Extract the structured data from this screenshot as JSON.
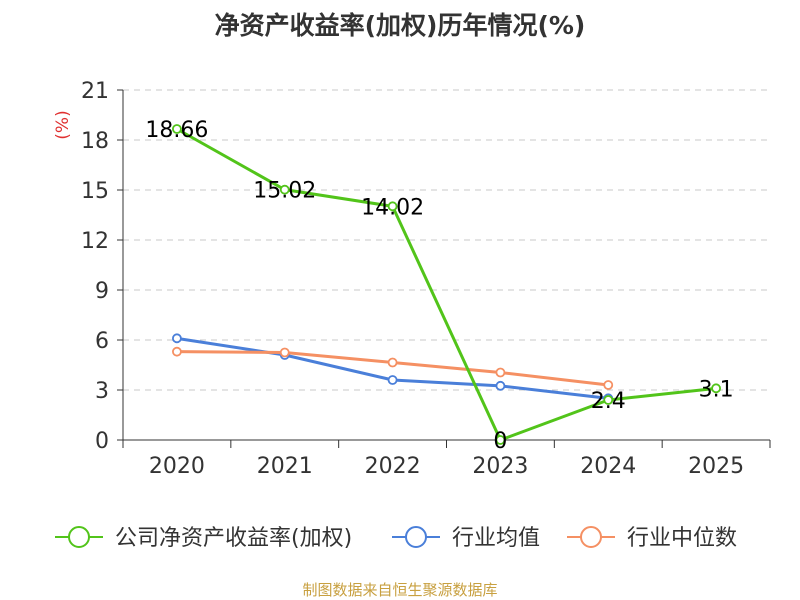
{
  "chart_data": {
    "type": "line",
    "title": "净资产收益率(加权)历年情况(%)",
    "ylabel": "(%)",
    "xlabel": "",
    "categories": [
      "2020",
      "2021",
      "2022",
      "2023",
      "2024",
      "2025"
    ],
    "ylim": [
      0,
      21
    ],
    "yticks": [
      0,
      3,
      6,
      9,
      12,
      15,
      18,
      21
    ],
    "grid": true,
    "legend_position": "bottom",
    "series": [
      {
        "name": "公司净资产收益率(加权)",
        "color": "#52c41a",
        "values": [
          18.66,
          15.02,
          14.02,
          0,
          2.4,
          3.1
        ],
        "labels": [
          "18.66",
          "15.02",
          "14.02",
          "0",
          "2.4",
          "3.1"
        ]
      },
      {
        "name": "行业均值",
        "color": "#4a7fd9",
        "values": [
          6.1,
          5.1,
          3.6,
          3.25,
          2.5,
          null
        ]
      },
      {
        "name": "行业中位数",
        "color": "#f59063",
        "values": [
          5.3,
          5.25,
          4.65,
          4.05,
          3.3,
          null
        ]
      }
    ],
    "source": "制图数据来自恒生聚源数据库"
  }
}
